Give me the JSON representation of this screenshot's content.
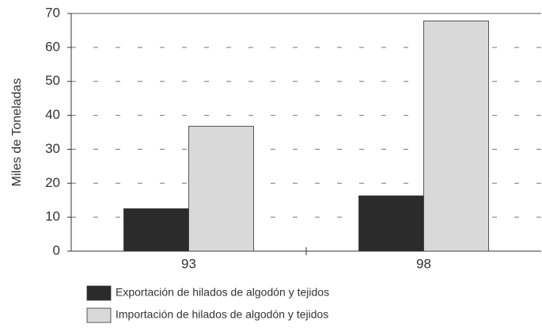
{
  "chart_data": {
    "type": "bar",
    "y_label": "Miles de Toneladas",
    "categories": [
      "93",
      "98"
    ],
    "series": [
      {
        "name": "Exportación de hilados de algodón y tejidos",
        "color": "#2b2b2b",
        "values": [
          12.5,
          16.3
        ]
      },
      {
        "name": "Importación de hilados de algodón y tejidos",
        "color": "#d9d9d9",
        "values": [
          36.8,
          67.8
        ]
      }
    ],
    "ylim": [
      0,
      70
    ],
    "yticks": [
      0,
      10,
      20,
      30,
      40,
      50,
      60,
      70
    ],
    "grid": true,
    "legend": "bottom"
  }
}
